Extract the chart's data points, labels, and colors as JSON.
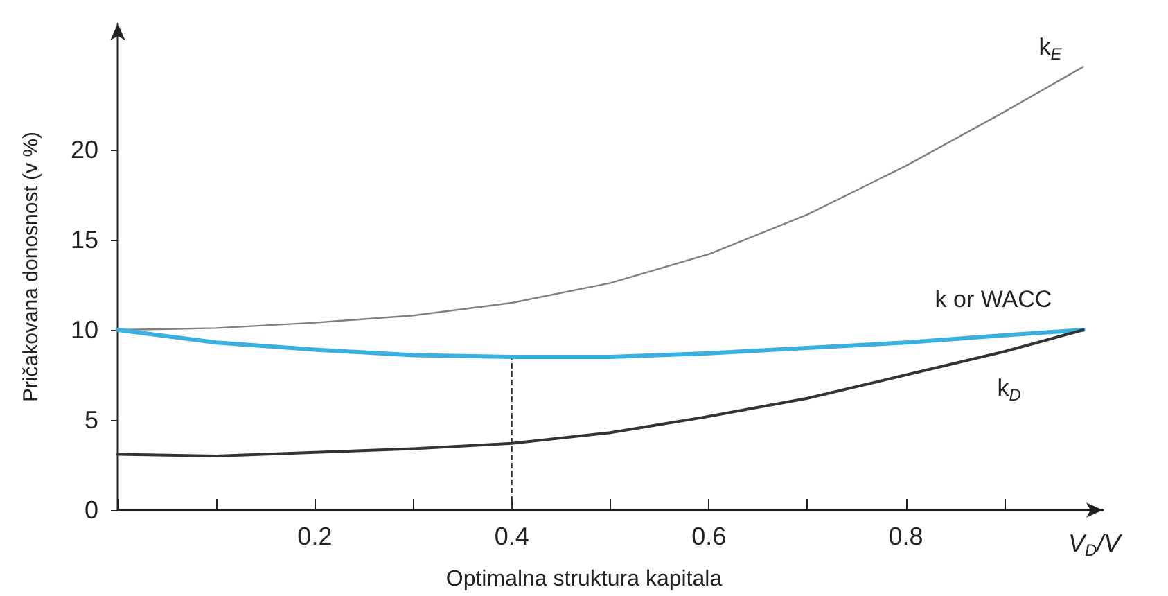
{
  "chart_data": {
    "type": "line",
    "xlabel": "V$_{D}$/V",
    "ylabel": "Pričakovana donosnost (v %)",
    "annotations": [
      "Optimalna struktura kapitala"
    ],
    "x": [
      0,
      0.1,
      0.2,
      0.3,
      0.4,
      0.5,
      0.6,
      0.7,
      0.8,
      0.9,
      0.98
    ],
    "series": [
      {
        "name": "k$_{E}$",
        "color": "#808080",
        "values": [
          10,
          10.1,
          10.4,
          10.8,
          11.5,
          12.6,
          14.2,
          16.4,
          19.1,
          22.1,
          24.6
        ]
      },
      {
        "name": "k or WACC",
        "color": "#3ab0e0",
        "values": [
          10,
          9.3,
          8.9,
          8.6,
          8.5,
          8.5,
          8.7,
          9,
          9.3,
          9.7,
          10
        ]
      },
      {
        "name": "k$_{D}$",
        "color": "#333333",
        "values": [
          3.1,
          3,
          3.2,
          3.4,
          3.7,
          4.3,
          5.2,
          6.2,
          7.5,
          8.8,
          10
        ]
      }
    ],
    "xlim": [
      0,
      1
    ],
    "ylim": [
      0,
      27
    ],
    "xticks": [
      {
        "value": 0,
        "label": null
      },
      {
        "value": 0.1,
        "label": null
      },
      0.2,
      {
        "value": 0.3,
        "label": null
      },
      0.4,
      {
        "value": 0.5,
        "label": null
      },
      0.6,
      {
        "value": 0.7,
        "label": null
      },
      0.8,
      {
        "value": 0.9,
        "label": null
      }
    ],
    "yticks": [
      0,
      5,
      10,
      15,
      20
    ],
    "ref_lines": [
      {
        "axis": "x",
        "value": 0.4,
        "line_style": "dashed",
        "color": "#333333"
      }
    ],
    "grid": false,
    "legend": false,
    "marker": "none",
    "line_style": "solid"
  }
}
